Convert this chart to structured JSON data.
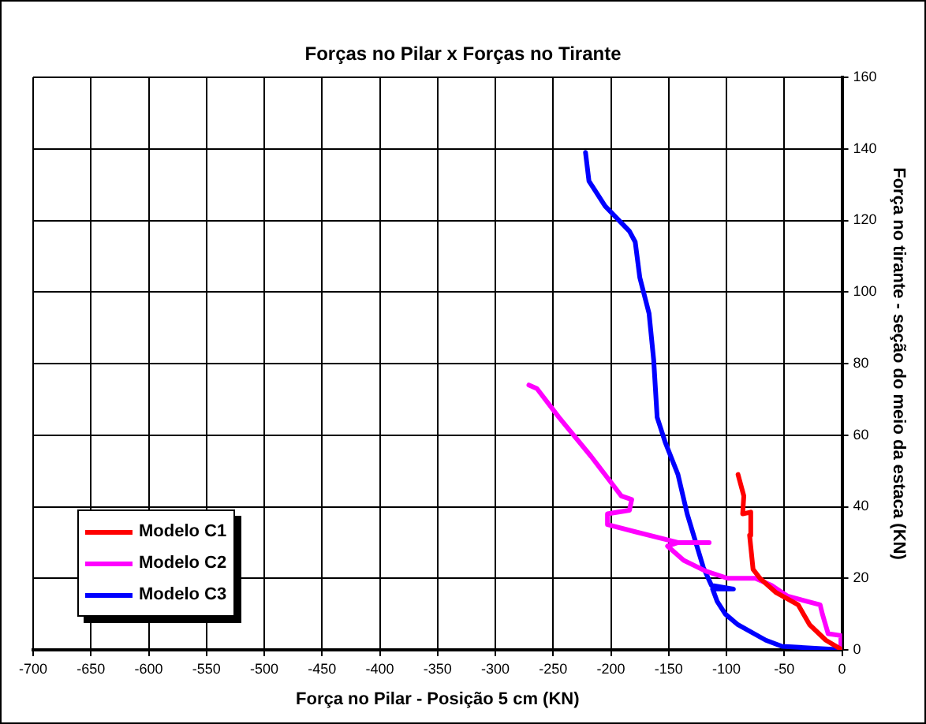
{
  "chart_data": {
    "type": "line",
    "title": "Forças no Pilar x Forças no Tirante",
    "xlabel": "Força no Pilar - Posição 5 cm (KN)",
    "ylabel": "Força no tirante - seção do meio da estaca (KN)",
    "xlim": [
      -700,
      0
    ],
    "xticks": [
      -700,
      -650,
      -600,
      -550,
      -500,
      -450,
      -400,
      -350,
      -300,
      -250,
      -200,
      -150,
      -100,
      -50,
      0
    ],
    "ylim": [
      0,
      160
    ],
    "yticks": [
      0,
      20,
      40,
      60,
      80,
      100,
      120,
      140,
      160
    ],
    "grid": true,
    "legend": "bottom left",
    "marker": "none",
    "line_style": "solid",
    "series": [
      {
        "name": "Modelo C1",
        "color": "#ff0000",
        "x": [
          0,
          -14,
          -28,
          -38,
          -57,
          -71,
          -77,
          -80,
          -79,
          -86,
          -85,
          -90
        ],
        "values": [
          0,
          2.7,
          7,
          12.6,
          16,
          20,
          22.5,
          32,
          38.5,
          38,
          43,
          49
        ]
      },
      {
        "name": "Modelo C2",
        "color": "#ff00ff",
        "x": [
          0,
          -1,
          -12,
          -17,
          -19,
          -47,
          -61,
          -75,
          -99,
          -118,
          -137,
          -151,
          -142,
          -115,
          -142,
          -179,
          -203,
          -203,
          -184,
          -182,
          -191,
          -217,
          -245,
          -264,
          -271
        ],
        "values": [
          0,
          4,
          4.5,
          10,
          12.6,
          15,
          18,
          20,
          20,
          22,
          25,
          29,
          30,
          30,
          30,
          33,
          35,
          38,
          39,
          42,
          43,
          54,
          65,
          73,
          74
        ]
      },
      {
        "name": "Modelo C3",
        "color": "#0000ff",
        "x": [
          0,
          -52,
          -66,
          -90,
          -101,
          -108,
          -112,
          -94,
          -113,
          -120,
          -134,
          -142,
          -153,
          -160,
          -163,
          -167,
          -175,
          -179,
          -184,
          -205,
          -215,
          -219,
          -222
        ],
        "values": [
          0,
          1,
          2.7,
          7,
          10,
          13.5,
          17,
          17,
          18,
          23,
          38,
          49,
          58,
          65,
          81,
          94,
          104,
          114,
          117,
          124,
          129,
          131,
          139
        ]
      }
    ]
  }
}
